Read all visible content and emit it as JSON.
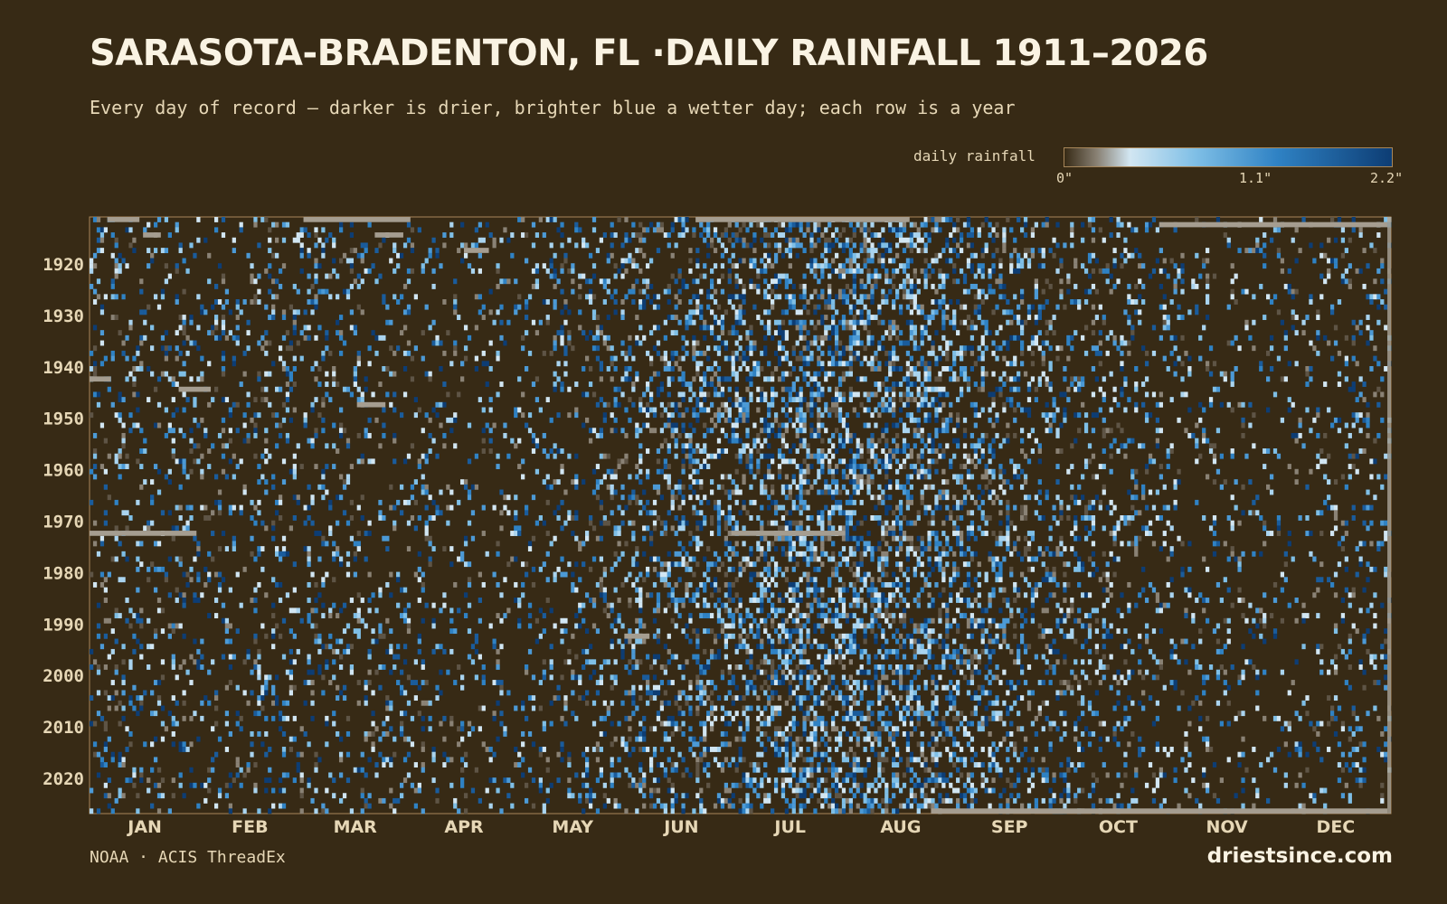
{
  "header": {
    "title": "SARASOTA-BRADENTON, FL ·DAILY RAINFALL 1911–2026",
    "subtitle": "Every day of record — darker is drier, brighter blue a wetter day; each row is a year"
  },
  "legend": {
    "label": "daily rainfall",
    "ticks": [
      "0\"",
      "1.1\"",
      "2.2\""
    ]
  },
  "colors": {
    "background": "#372a15",
    "dry": "#372a15",
    "mid": "#d2e6f2",
    "light_blue": "#7fbfe6",
    "blue": "#2f82c4",
    "dark_blue": "#0d3d74",
    "missing": "#a59d90"
  },
  "chart_data": {
    "type": "heatmap",
    "title": "SARASOTA-BRADENTON, FL ·DAILY RAINFALL 1911–2026",
    "x": "day of year",
    "y": "year",
    "year_range": [
      1911,
      2026
    ],
    "y_ticks": [
      "1920",
      "1930",
      "1940",
      "1950",
      "1960",
      "1970",
      "1980",
      "1990",
      "2000",
      "2010",
      "2020"
    ],
    "x_ticks": [
      "JAN",
      "FEB",
      "MAR",
      "APR",
      "MAY",
      "JUN",
      "JUL",
      "AUG",
      "SEP",
      "OCT",
      "NOV",
      "DEC"
    ],
    "value_range_inches": [
      0,
      2.2
    ],
    "colorbar": "0 dry (dark) → 2.2\" wet (dark blue)",
    "wet_season": [
      "JUN",
      "JUL",
      "AUG",
      "SEP"
    ],
    "dry_season": [
      "APR",
      "MAY",
      "NOV",
      "DEC"
    ],
    "note": "individual daily cells are reproduced as a pattern; wettest months Jun–Sep"
  },
  "footer": {
    "source": "NOAA · ACIS ThreadEx",
    "brand": "driestsince.com"
  }
}
